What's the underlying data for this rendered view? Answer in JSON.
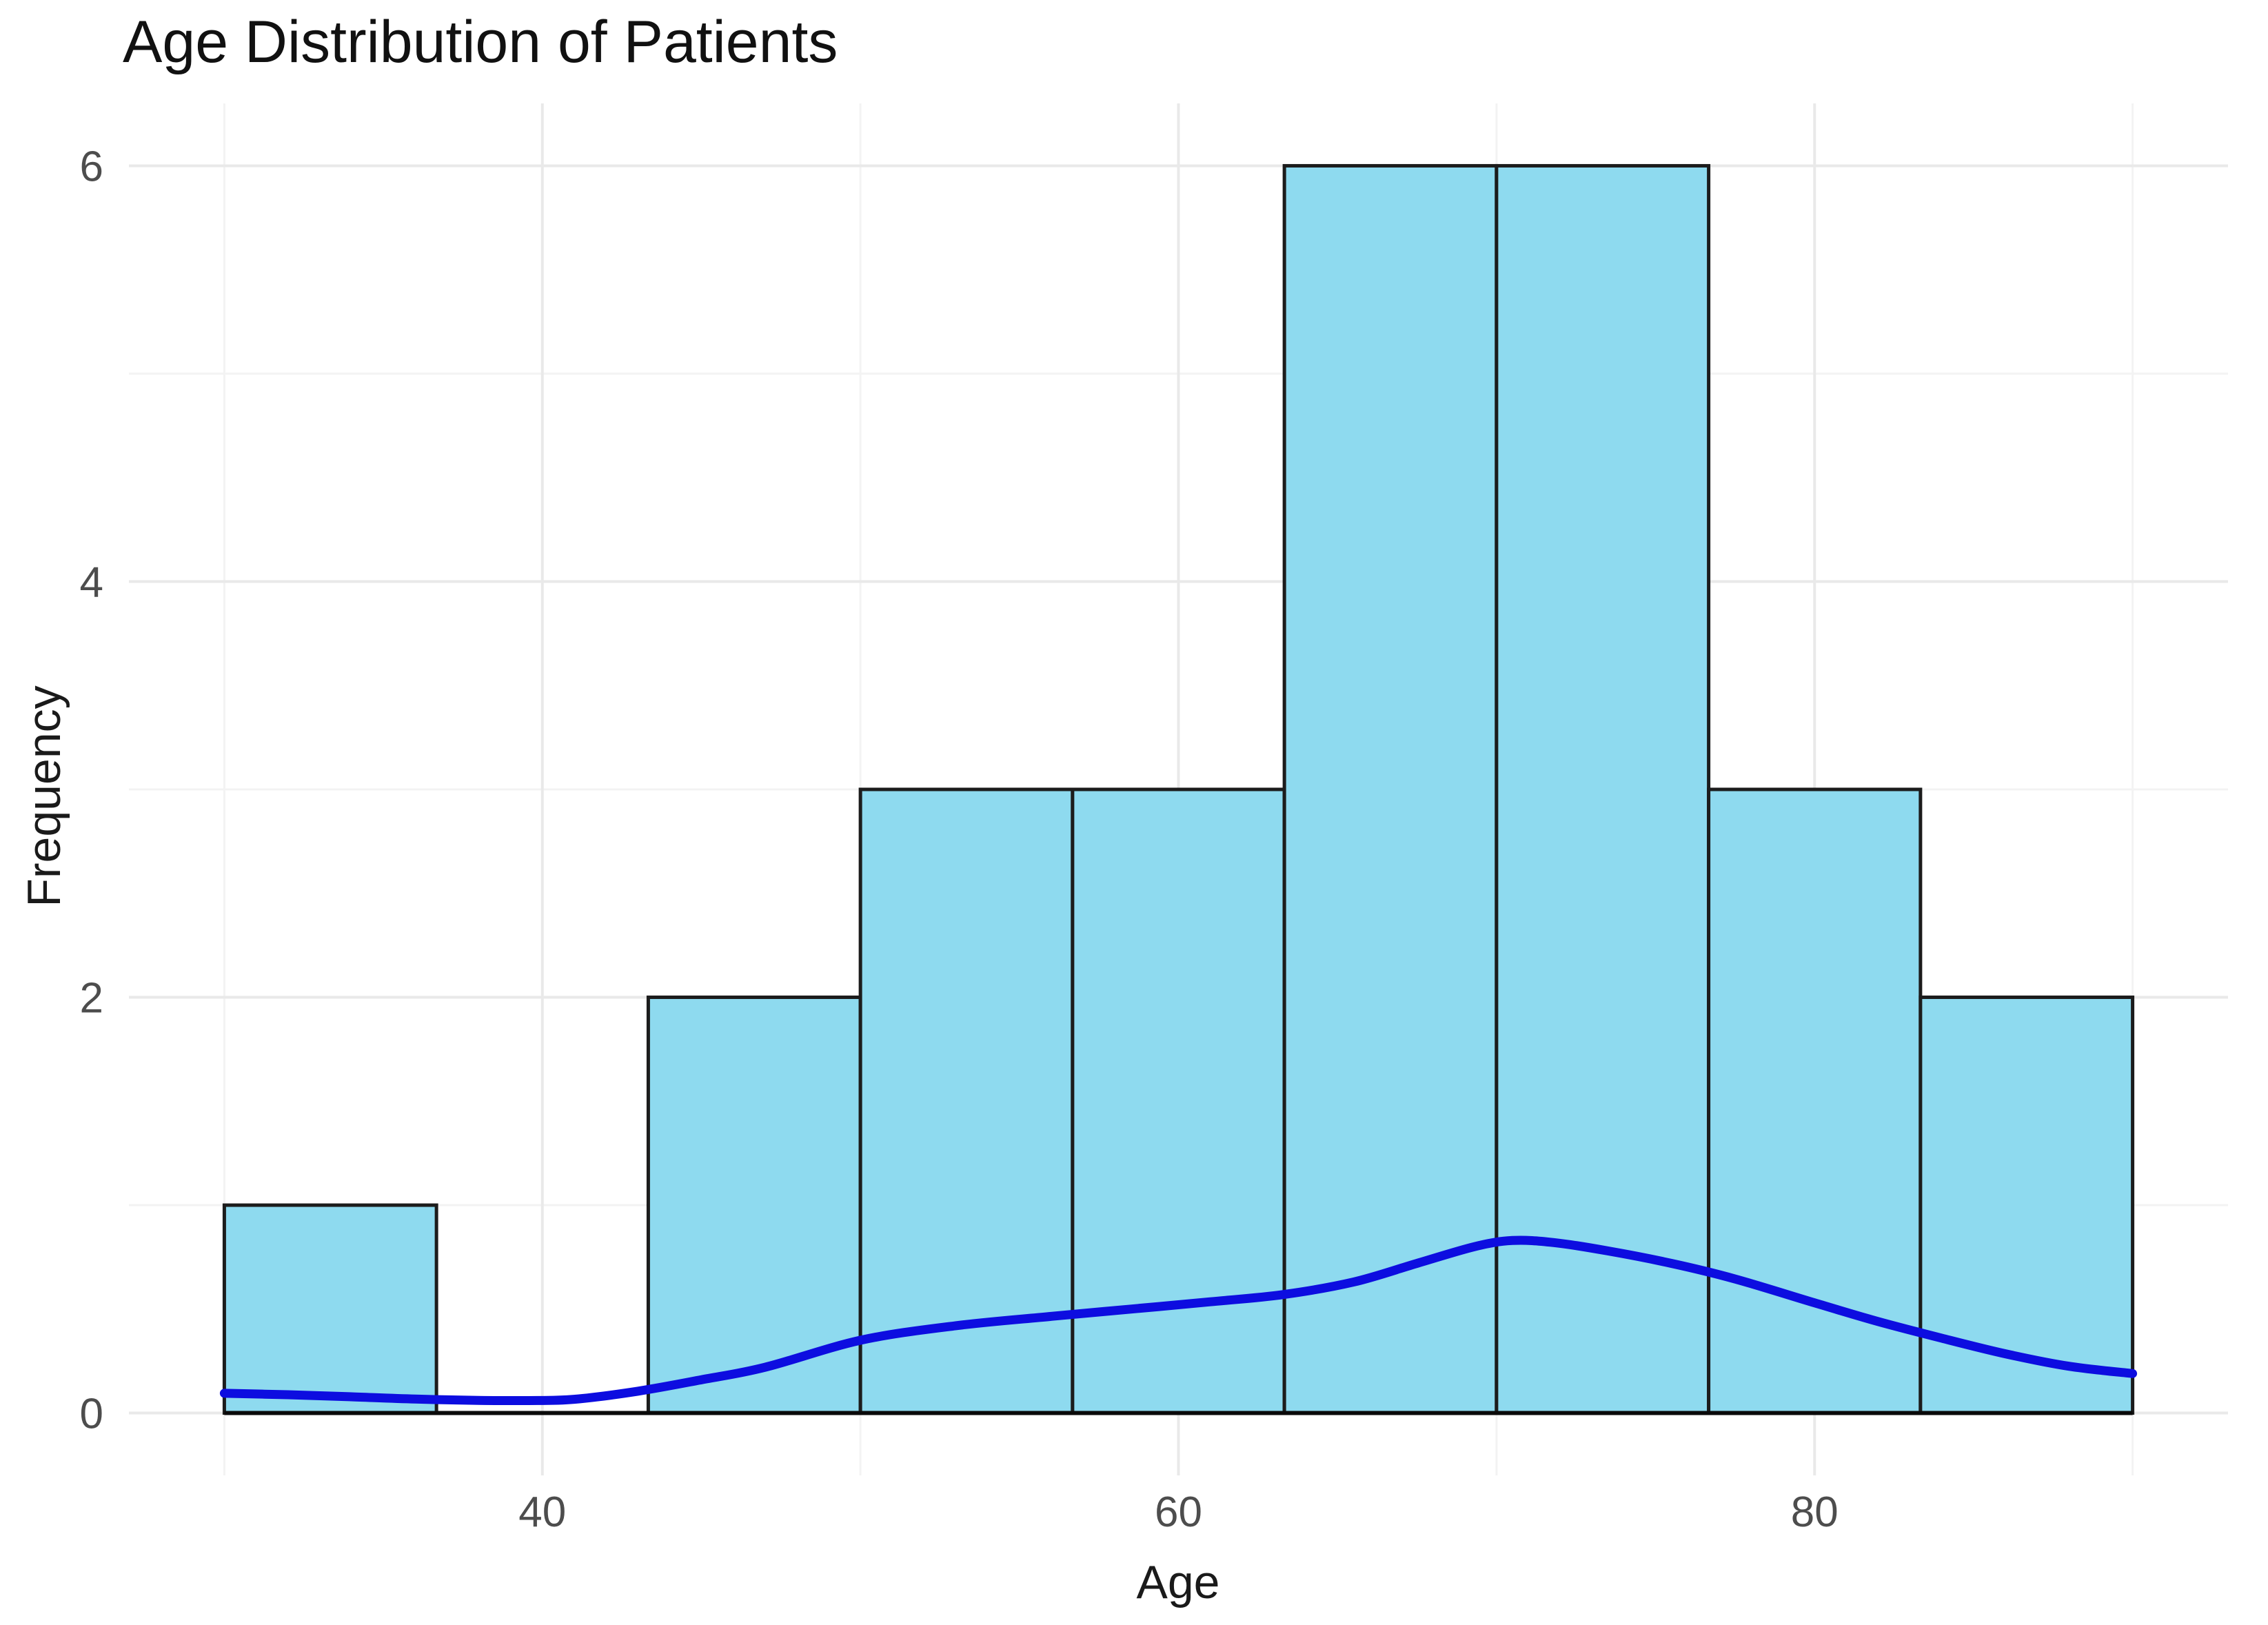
{
  "chart_data": {
    "type": "histogram",
    "title": "Age Distribution of Patients",
    "xlabel": "Age",
    "ylabel": "Frequency",
    "grid": "on",
    "legend": "none",
    "bins": {
      "edges": [
        30,
        36.67,
        43.33,
        50,
        56.67,
        63.33,
        70,
        76.67,
        83.33,
        90
      ],
      "counts": [
        1,
        0,
        2,
        3,
        3,
        6,
        6,
        3,
        2
      ]
    },
    "x_axis": {
      "range": [
        27,
        93
      ],
      "ticks": [
        40,
        60,
        80
      ],
      "minor_ticks": [
        30,
        50,
        70,
        90
      ]
    },
    "y_axis": {
      "range": [
        -0.3,
        6.3
      ],
      "ticks": [
        0,
        2,
        4,
        6
      ],
      "minor_ticks": [
        1,
        3,
        5
      ]
    },
    "density_curve": {
      "note": "kernel density estimate scaled to count axis, trimmed to data range 30-90",
      "x": [
        30,
        32,
        34,
        36,
        38,
        39.5,
        41,
        43,
        45,
        47,
        50,
        53,
        56,
        58.5,
        61,
        63.3,
        65.5,
        67.5,
        69.3,
        70.5,
        71.8,
        73.5,
        75.5,
        77.5,
        80,
        82,
        84,
        86,
        88,
        90
      ],
      "y": [
        0.095,
        0.088,
        0.078,
        0.067,
        0.061,
        0.06,
        0.066,
        0.105,
        0.16,
        0.22,
        0.35,
        0.42,
        0.465,
        0.5,
        0.535,
        0.57,
        0.63,
        0.72,
        0.8,
        0.83,
        0.82,
        0.78,
        0.72,
        0.645,
        0.53,
        0.44,
        0.36,
        0.285,
        0.225,
        0.19
      ]
    },
    "colors": {
      "background": "#ffffff",
      "bar_fill": "#8edaef",
      "bar_border": "#1c1c1c",
      "baseline": "#0a0a0a",
      "curve": "#0d0de0",
      "grid_major": "#e9e9e9",
      "grid_minor": "#f3f3f3",
      "tick_label": "#4d4d4d",
      "text": "#1a1a1a"
    }
  }
}
